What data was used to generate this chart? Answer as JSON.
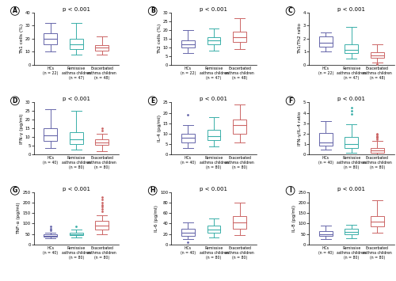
{
  "panels": [
    {
      "label": "A",
      "title": "p < 0.001",
      "ylabel": "Th1 cells (%)",
      "ylim": [
        0,
        40
      ],
      "yticks": [
        0,
        10,
        20,
        30,
        40
      ],
      "groups": [
        {
          "name": "HCs\n(n = 22)",
          "color": "#6666aa",
          "median": 20,
          "q1": 16,
          "q3": 24,
          "whislo": 10,
          "whishi": 32,
          "fliers": []
        },
        {
          "name": "Remissive\nasthma children\n(n = 47)",
          "color": "#3aafa9",
          "median": 16,
          "q1": 12,
          "q3": 20,
          "whislo": 8,
          "whishi": 32,
          "fliers": []
        },
        {
          "name": "Exacerbated\nasthma children\n(n = 48)",
          "color": "#cc6666",
          "median": 13,
          "q1": 11,
          "q3": 15,
          "whislo": 8,
          "whishi": 22,
          "fliers": []
        }
      ]
    },
    {
      "label": "B",
      "title": "p < 0.001",
      "ylabel": "Th2 cells (%)",
      "ylim": [
        0,
        30
      ],
      "yticks": [
        0,
        5,
        10,
        15,
        20,
        25,
        30
      ],
      "groups": [
        {
          "name": "HCs\n(n = 22)",
          "color": "#6666aa",
          "median": 12,
          "q1": 10,
          "q3": 14,
          "whislo": 7,
          "whishi": 20,
          "fliers": []
        },
        {
          "name": "Remissive\nasthma children\n(n = 47)",
          "color": "#3aafa9",
          "median": 14,
          "q1": 12,
          "q3": 16,
          "whislo": 8,
          "whishi": 21,
          "fliers": []
        },
        {
          "name": "Exacerbated\nasthma children\n(n = 48)",
          "color": "#cc6666",
          "median": 16,
          "q1": 13,
          "q3": 19,
          "whislo": 9,
          "whishi": 27,
          "fliers": []
        }
      ]
    },
    {
      "label": "C",
      "title": "p < 0.001",
      "ylabel": "Th1/Th2 ratio",
      "ylim": [
        0,
        4
      ],
      "yticks": [
        0,
        1,
        2,
        3,
        4
      ],
      "groups": [
        {
          "name": "HCs\n(n = 22)",
          "color": "#6666aa",
          "median": 1.7,
          "q1": 1.4,
          "q3": 2.2,
          "whislo": 1.0,
          "whishi": 2.5,
          "fliers": []
        },
        {
          "name": "Remissive\nasthma children\n(n = 47)",
          "color": "#3aafa9",
          "median": 1.15,
          "q1": 0.9,
          "q3": 1.6,
          "whislo": 0.5,
          "whishi": 2.9,
          "fliers": []
        },
        {
          "name": "Exacerbated\nasthma children\n(n = 48)",
          "color": "#cc6666",
          "median": 0.75,
          "q1": 0.55,
          "q3": 0.95,
          "whislo": 0.2,
          "whishi": 1.6,
          "fliers": [
            0.05
          ]
        }
      ]
    },
    {
      "label": "D",
      "title": "p < 0.001",
      "ylabel": "IFN-γ (pg/ml)",
      "ylim": [
        0,
        30
      ],
      "yticks": [
        0,
        5,
        10,
        15,
        20,
        25,
        30
      ],
      "groups": [
        {
          "name": "HCs\n(n = 40)",
          "color": "#6666aa",
          "median": 11,
          "q1": 8,
          "q3": 15,
          "whislo": 4,
          "whishi": 26,
          "fliers": []
        },
        {
          "name": "Remissive\nasthma children\n(n = 80)",
          "color": "#3aafa9",
          "median": 9,
          "q1": 6,
          "q3": 13,
          "whislo": 3,
          "whishi": 25,
          "fliers": []
        },
        {
          "name": "Exacerbated\nasthma children\n(n = 80)",
          "color": "#cc6666",
          "median": 7,
          "q1": 5.5,
          "q3": 9,
          "whislo": 2,
          "whishi": 12,
          "fliers": [
            14,
            15
          ]
        }
      ]
    },
    {
      "label": "E",
      "title": "p < 0.001",
      "ylabel": "IL-4 (pg/ml)",
      "ylim": [
        0,
        25
      ],
      "yticks": [
        0,
        5,
        10,
        15,
        20,
        25
      ],
      "groups": [
        {
          "name": "HCs\n(n = 40)",
          "color": "#6666aa",
          "median": 8,
          "q1": 6,
          "q3": 10,
          "whislo": 3,
          "whishi": 14,
          "fliers": [
            19
          ]
        },
        {
          "name": "Remissive\nasthma children\n(n = 80)",
          "color": "#3aafa9",
          "median": 9,
          "q1": 7,
          "q3": 12,
          "whislo": 4,
          "whishi": 18,
          "fliers": []
        },
        {
          "name": "Exacerbated\nasthma children\n(n = 80)",
          "color": "#cc6666",
          "median": 14,
          "q1": 10,
          "q3": 17,
          "whislo": 6,
          "whishi": 24,
          "fliers": []
        }
      ]
    },
    {
      "label": "F",
      "title": "p < 0.001",
      "ylabel": "IFN-γ/IL-4 ratio",
      "ylim": [
        0,
        5
      ],
      "yticks": [
        0,
        1,
        2,
        3,
        4,
        5
      ],
      "groups": [
        {
          "name": "HCs\n(n = 40)",
          "color": "#6666aa",
          "median": 1.2,
          "q1": 0.9,
          "q3": 2.1,
          "whislo": 0.5,
          "whishi": 3.2,
          "fliers": []
        },
        {
          "name": "Remissive\nasthma children\n(n = 80)",
          "color": "#3aafa9",
          "median": 1.0,
          "q1": 0.6,
          "q3": 1.7,
          "whislo": 0.2,
          "whishi": 2.9,
          "fliers": [
            3.9,
            4.2,
            4.5
          ]
        },
        {
          "name": "Exacerbated\nasthma children\n(n = 80)",
          "color": "#cc6666",
          "median": 0.4,
          "q1": 0.2,
          "q3": 0.65,
          "whislo": 0.05,
          "whishi": 1.3,
          "fliers": [
            1.5,
            1.6,
            1.7,
            1.8,
            1.9,
            2.0
          ]
        }
      ]
    },
    {
      "label": "G",
      "title": "p < 0.001",
      "ylabel": "TNF-α (pg/ml)",
      "ylim": [
        0,
        250
      ],
      "yticks": [
        0,
        50,
        100,
        150,
        200,
        250
      ],
      "groups": [
        {
          "name": "HCs\n(n = 40)",
          "color": "#6666aa",
          "median": 42,
          "q1": 37,
          "q3": 50,
          "whislo": 28,
          "whishi": 58,
          "fliers": [
            68,
            75,
            85
          ]
        },
        {
          "name": "Remissive\nasthma children\n(n = 80)",
          "color": "#3aafa9",
          "median": 50,
          "q1": 44,
          "q3": 58,
          "whislo": 33,
          "whishi": 70,
          "fliers": [
            85
          ]
        },
        {
          "name": "Exacerbated\nasthma children\n(n = 80)",
          "color": "#cc6666",
          "median": 90,
          "q1": 70,
          "q3": 115,
          "whislo": 48,
          "whishi": 140,
          "fliers": [
            160,
            170,
            180,
            190,
            200,
            215,
            225
          ]
        }
      ]
    },
    {
      "label": "H",
      "title": "p < 0.001",
      "ylabel": "IL-6 (pg/ml)",
      "ylim": [
        0,
        100
      ],
      "yticks": [
        0,
        20,
        40,
        60,
        80,
        100
      ],
      "groups": [
        {
          "name": "HCs\n(n = 40)",
          "color": "#6666aa",
          "median": 22,
          "q1": 16,
          "q3": 30,
          "whislo": 10,
          "whishi": 42,
          "fliers": [
            5
          ]
        },
        {
          "name": "Remissive\nasthma children\n(n = 80)",
          "color": "#3aafa9",
          "median": 28,
          "q1": 22,
          "q3": 36,
          "whislo": 14,
          "whishi": 50,
          "fliers": []
        },
        {
          "name": "Exacerbated\nasthma children\n(n = 80)",
          "color": "#cc6666",
          "median": 42,
          "q1": 30,
          "q3": 55,
          "whislo": 18,
          "whishi": 80,
          "fliers": []
        }
      ]
    },
    {
      "label": "I",
      "title": "p < 0.001",
      "ylabel": "IL-8 (pg/ml)",
      "ylim": [
        0,
        250
      ],
      "yticks": [
        0,
        50,
        100,
        150,
        200,
        250
      ],
      "groups": [
        {
          "name": "HCs\n(n = 40)",
          "color": "#6666aa",
          "median": 50,
          "q1": 40,
          "q3": 65,
          "whislo": 25,
          "whishi": 90,
          "fliers": []
        },
        {
          "name": "Remissive\nasthma children\n(n = 80)",
          "color": "#3aafa9",
          "median": 60,
          "q1": 48,
          "q3": 75,
          "whislo": 30,
          "whishi": 95,
          "fliers": []
        },
        {
          "name": "Exacerbated\nasthma children\n(n = 80)",
          "color": "#cc6666",
          "median": 110,
          "q1": 85,
          "q3": 135,
          "whislo": 55,
          "whishi": 210,
          "fliers": []
        }
      ]
    }
  ]
}
